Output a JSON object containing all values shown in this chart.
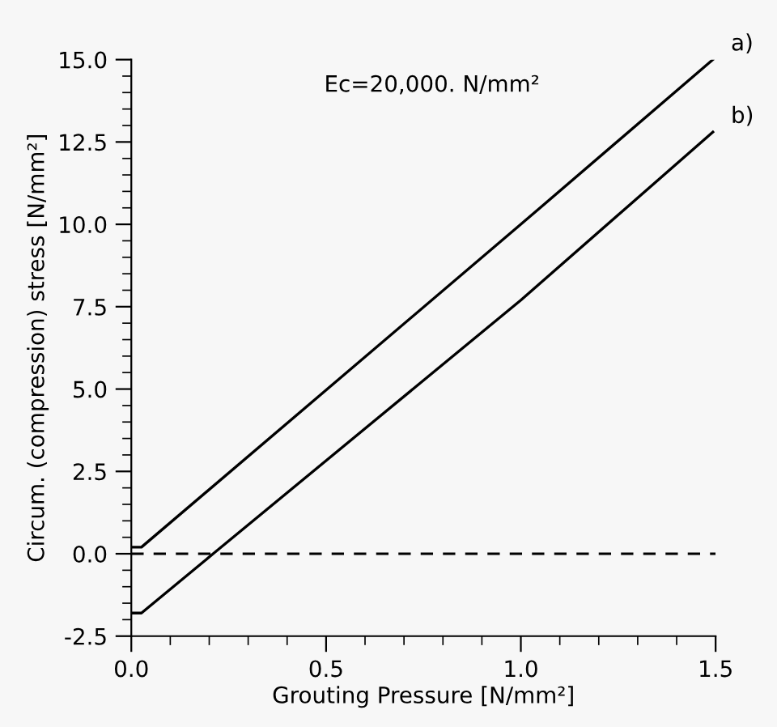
{
  "chart_data": {
    "type": "line",
    "xlabel": "Grouting Pressure [N/mm²]",
    "ylabel": "Circum. (compression) stress [N/mm²]",
    "annotations": [
      "Ec=20,000. N/mm²"
    ],
    "series": [
      {
        "name": "a)",
        "color": "#000000",
        "x": [
          0,
          0.026,
          1.0,
          1.493
        ],
        "values": [
          0.2,
          0.2,
          10.0,
          15.0
        ]
      },
      {
        "name": "b)",
        "color": "#000000",
        "x": [
          0,
          0.026,
          0.21,
          1.0,
          1.493
        ],
        "values": [
          -1.8,
          -1.8,
          0,
          7.7,
          12.8
        ]
      }
    ],
    "ref_lines": [
      {
        "axis": "y",
        "value": 0,
        "color": "#000000",
        "line_style": "dashed"
      }
    ],
    "xlim": [
      0,
      1.5
    ],
    "ylim": [
      -2.5,
      15
    ],
    "xticks": [
      {
        "value": 0,
        "label": "0.0"
      },
      0.5,
      {
        "value": 1,
        "label": "1.0"
      },
      1.5
    ],
    "yticks": [
      -2.5,
      {
        "value": 0,
        "label": "0.0"
      },
      2.5,
      {
        "value": 5,
        "label": "5.0"
      },
      7.5,
      {
        "value": 10,
        "label": "10.0"
      },
      12.5,
      {
        "value": 15,
        "label": "15.0"
      }
    ],
    "grid": false,
    "legend": false,
    "marker": "none",
    "line_style": "solid"
  }
}
